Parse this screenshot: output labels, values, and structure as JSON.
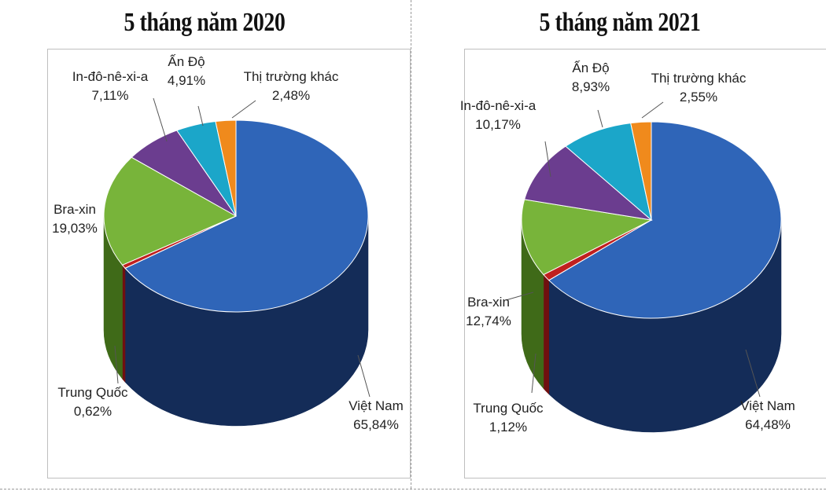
{
  "chart_data": [
    {
      "type": "pie",
      "title": "5 tháng năm 2020",
      "slices": [
        {
          "label": "Việt Nam",
          "value": 65.84,
          "value_text": "65,84%",
          "color": "#2f65b8",
          "side_color": "#142c58"
        },
        {
          "label": "Trung Quốc",
          "value": 0.62,
          "value_text": "0,62%",
          "color": "#c0201f",
          "side_color": "#701010"
        },
        {
          "label": "Bra-xin",
          "value": 19.03,
          "value_text": "19,03%",
          "color": "#78b43a",
          "side_color": "#3f6a18"
        },
        {
          "label": "In-đô-nê-xi-a",
          "value": 7.11,
          "value_text": "7,11%",
          "color": "#6b3d8f",
          "side_color": "#3a1f52"
        },
        {
          "label": "Ấn Độ",
          "value": 4.91,
          "value_text": "4,91%",
          "color": "#1ba6c9",
          "side_color": "#0e5e72"
        },
        {
          "label": "Thị trường khác",
          "value": 2.48,
          "value_text": "2,48%",
          "color": "#f08a1c",
          "side_color": "#8a4c0c"
        }
      ]
    },
    {
      "type": "pie",
      "title": "5 tháng năm 2021",
      "slices": [
        {
          "label": "Việt Nam",
          "value": 64.48,
          "value_text": "64,48%",
          "color": "#2f65b8",
          "side_color": "#142c58"
        },
        {
          "label": "Trung Quốc",
          "value": 1.12,
          "value_text": "1,12%",
          "color": "#c0201f",
          "side_color": "#701010"
        },
        {
          "label": "Bra-xin",
          "value": 12.74,
          "value_text": "12,74%",
          "color": "#78b43a",
          "side_color": "#3f6a18"
        },
        {
          "label": "In-đô-nê-xi-a",
          "value": 10.17,
          "value_text": "10,17%",
          "color": "#6b3d8f",
          "side_color": "#3a1f52"
        },
        {
          "label": "Ấn Độ",
          "value": 8.93,
          "value_text": "8,93%",
          "color": "#1ba6c9",
          "side_color": "#0e5e72"
        },
        {
          "label": "Thị trường khác",
          "value": 2.55,
          "value_text": "2,55%",
          "color": "#f08a1c",
          "side_color": "#8a4c0c"
        }
      ]
    }
  ]
}
